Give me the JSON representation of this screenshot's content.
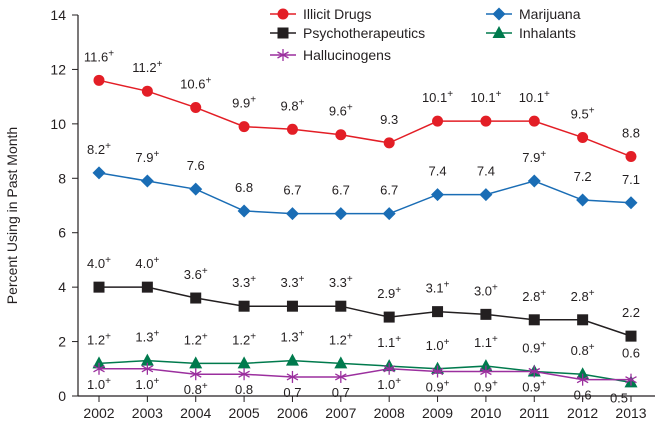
{
  "chart_data": {
    "type": "line",
    "title": "",
    "xlabel": "",
    "ylabel": "Percent Using in Past Month",
    "ylim": [
      0,
      14
    ],
    "yticks": [
      0,
      2,
      4,
      6,
      8,
      10,
      12,
      14
    ],
    "grid": false,
    "legend_placement": "top-right",
    "categories": [
      "2002",
      "2003",
      "2004",
      "2005",
      "2006",
      "2007",
      "2008",
      "2009",
      "2010",
      "2011",
      "2012",
      "2013"
    ],
    "series": [
      {
        "name": "Illicit Drugs",
        "color": "#e31e26",
        "marker": "circle",
        "values": [
          11.6,
          11.2,
          10.6,
          9.9,
          9.8,
          9.6,
          9.3,
          10.1,
          10.1,
          10.1,
          9.5,
          8.8
        ],
        "labels": [
          "11.6+",
          "11.2+",
          "10.6+",
          "9.9+",
          "9.8+",
          "9.6+",
          "9.3",
          "10.1+",
          "10.1+",
          "10.1+",
          "9.5+",
          "8.8"
        ]
      },
      {
        "name": "Marijuana",
        "color": "#1a6db5",
        "marker": "diamond",
        "values": [
          8.2,
          7.9,
          7.6,
          6.8,
          6.7,
          6.7,
          6.7,
          7.4,
          7.4,
          7.9,
          7.2,
          7.1
        ],
        "labels": [
          "8.2+",
          "7.9+",
          "7.6",
          "6.8",
          "6.7",
          "6.7",
          "6.7",
          "7.4",
          "7.4",
          "7.9+",
          "7.2",
          "7.1"
        ]
      },
      {
        "name": "Psychotherapeutics",
        "color": "#231f20",
        "marker": "square",
        "values": [
          4.0,
          4.0,
          3.6,
          3.3,
          3.3,
          3.3,
          2.9,
          3.1,
          3.0,
          2.8,
          2.8,
          2.2
        ],
        "labels": [
          "4.0+",
          "4.0+",
          "3.6+",
          "3.3+",
          "3.3+",
          "3.3+",
          "2.9+",
          "3.1+",
          "3.0+",
          "2.8+",
          "2.8+",
          "2.2"
        ]
      },
      {
        "name": "Inhalants",
        "color": "#007a4d",
        "marker": "triangle",
        "values": [
          1.2,
          1.3,
          1.2,
          1.2,
          1.3,
          1.2,
          1.1,
          1.0,
          1.1,
          0.9,
          0.8,
          0.5
        ],
        "labels": [
          "1.2+",
          "1.3+",
          "1.2+",
          "1.2+",
          "1.3+",
          "1.2+",
          "1.1+",
          "1.0+",
          "1.1+",
          "0.9+",
          "0.8+",
          "0.5"
        ]
      },
      {
        "name": "Hallucinogens",
        "color": "#9b2f9e",
        "marker": "asterisk",
        "values": [
          1.0,
          1.0,
          0.8,
          0.8,
          0.7,
          0.7,
          1.0,
          0.9,
          0.9,
          0.9,
          0.6,
          0.6
        ],
        "labels": [
          "1.0+",
          "1.0+",
          "0.8+",
          "0.8",
          "0.7",
          "0.7",
          "1.0+",
          "0.9+",
          "0.9+",
          "0.9+",
          "0.6",
          "0.6"
        ]
      }
    ]
  }
}
